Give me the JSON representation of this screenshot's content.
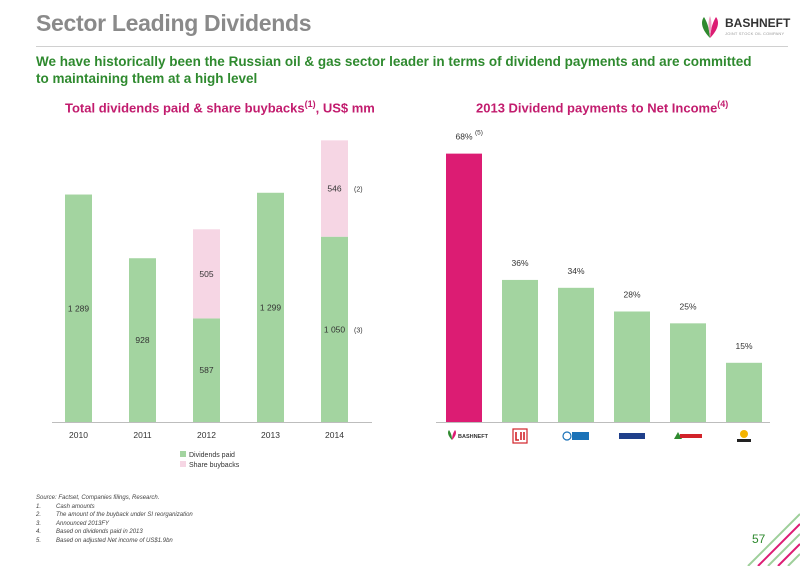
{
  "slide": {
    "title": "Sector Leading Dividends",
    "subtitle": "We have historically been the Russian oil & gas sector leader in terms of dividend payments and are committed to maintaining them at a high level",
    "page_number": "57",
    "logo": {
      "name": "BASHNEFT",
      "tagline": "JOINT STOCK OIL COMPANY"
    },
    "source": "Source: Factset, Companies filings, Research.",
    "footnotes": [
      {
        "num": "1.",
        "text": "Cash amounts"
      },
      {
        "num": "2.",
        "text": "The amount of the buyback under SI reorganization"
      },
      {
        "num": "3.",
        "text": "Announced 2013FY"
      },
      {
        "num": "4.",
        "text": "Based on dividends paid in 2013"
      },
      {
        "num": "5.",
        "text": "Based on adjusted Net income of US$1.9bn"
      }
    ]
  },
  "chart_data": [
    {
      "type": "bar",
      "stacked": true,
      "title": "Total dividends paid & share buybacks",
      "title_sup": "(1)",
      "title_suffix": ", US$ mm",
      "categories": [
        "2010",
        "2011",
        "2012",
        "2013",
        "2014"
      ],
      "series": [
        {
          "name": "Dividends paid",
          "values": [
            1289,
            928,
            587,
            1299,
            1050
          ],
          "labels": [
            "1 289",
            "928",
            "587",
            "1 299",
            "1 050"
          ],
          "color": "#a3d4a0"
        },
        {
          "name": "Share buybacks",
          "values": [
            0,
            0,
            505,
            0,
            546
          ],
          "labels": [
            "",
            "",
            "505",
            "",
            "546"
          ],
          "color": "#f6d6e4"
        }
      ],
      "annotations": [
        {
          "category": "2014",
          "series": "Share buybacks",
          "text": "(2)"
        },
        {
          "category": "2014",
          "series": "Dividends paid",
          "text": "(3)"
        }
      ],
      "legend": "bottom",
      "ylim": [
        0,
        1700
      ],
      "grid": false
    },
    {
      "type": "bar",
      "title": "2013 Dividend payments to Net Income",
      "title_sup": "(4)",
      "categories": [
        "BASHNEFT",
        "LUKOIL",
        "GAZPROM NEFT",
        "NOVATEK",
        "TATNEFT",
        "ROSNEFT"
      ],
      "values": [
        68,
        36,
        34,
        28,
        25,
        15
      ],
      "labels": [
        "68%",
        "36%",
        "34%",
        "28%",
        "25%",
        "15%"
      ],
      "annotations": [
        {
          "category": "BASHNEFT",
          "text": "(5)"
        }
      ],
      "colors": {
        "highlight": "#dc1c73",
        "others": "#a3d4a0"
      },
      "ylim": [
        0,
        75
      ],
      "grid": false
    }
  ],
  "colors": {
    "accent_green": "#2f8a2f",
    "accent_magenta": "#c21c6e",
    "title_gray": "#8a8a8a"
  }
}
